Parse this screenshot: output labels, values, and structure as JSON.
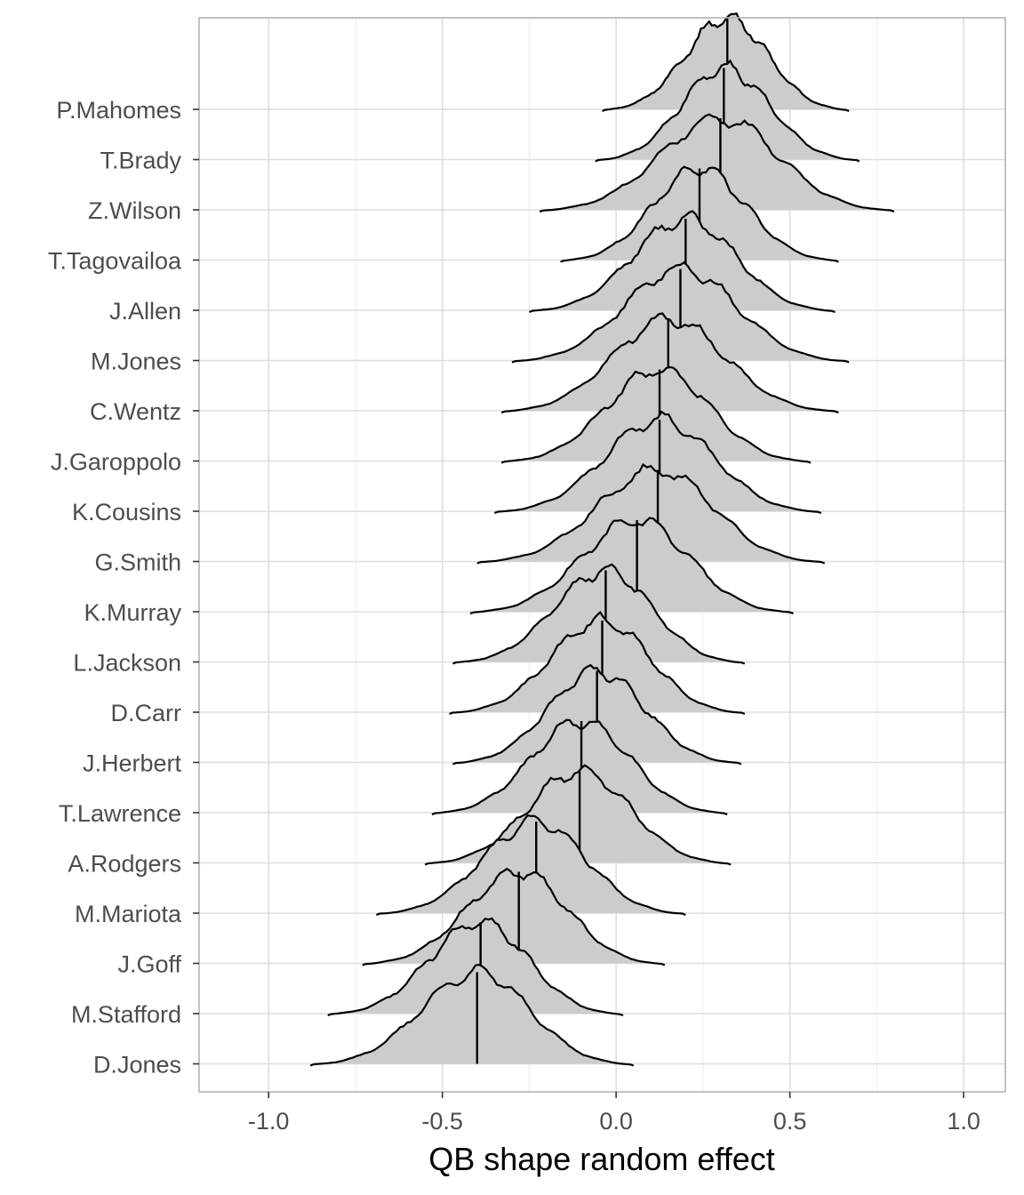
{
  "chart_data": {
    "type": "ridgeline",
    "title": "",
    "xlabel": "QB shape random effect",
    "ylabel": "",
    "xlim": [
      -1.2,
      1.12
    ],
    "x_ticks": [
      -1.0,
      -0.5,
      0.0,
      0.5,
      1.0
    ],
    "x_tick_labels": [
      "-1.0",
      "-0.5",
      "0.0",
      "0.5",
      "1.0"
    ],
    "grid": true,
    "fill_color": "#cccccc",
    "line_color": "#000000",
    "series": [
      {
        "name": "P.Mahomes",
        "min": -0.04,
        "max": 0.67,
        "median": 0.32
      },
      {
        "name": "T.Brady",
        "min": -0.06,
        "max": 0.7,
        "median": 0.31
      },
      {
        "name": "Z.Wilson",
        "min": -0.22,
        "max": 0.8,
        "median": 0.3
      },
      {
        "name": "T.Tagovailoa",
        "min": -0.16,
        "max": 0.64,
        "median": 0.24
      },
      {
        "name": "J.Allen",
        "min": -0.25,
        "max": 0.63,
        "median": 0.2
      },
      {
        "name": "M.Jones",
        "min": -0.3,
        "max": 0.67,
        "median": 0.185
      },
      {
        "name": "C.Wentz",
        "min": -0.33,
        "max": 0.64,
        "median": 0.15
      },
      {
        "name": "J.Garoppolo",
        "min": -0.33,
        "max": 0.56,
        "median": 0.125
      },
      {
        "name": "K.Cousins",
        "min": -0.35,
        "max": 0.59,
        "median": 0.125
      },
      {
        "name": "G.Smith",
        "min": -0.4,
        "max": 0.6,
        "median": 0.12
      },
      {
        "name": "K.Murray",
        "min": -0.42,
        "max": 0.51,
        "median": 0.06
      },
      {
        "name": "L.Jackson",
        "min": -0.47,
        "max": 0.37,
        "median": -0.03
      },
      {
        "name": "D.Carr",
        "min": -0.48,
        "max": 0.37,
        "median": -0.04
      },
      {
        "name": "J.Herbert",
        "min": -0.47,
        "max": 0.36,
        "median": -0.055
      },
      {
        "name": "T.Lawrence",
        "min": -0.53,
        "max": 0.32,
        "median": -0.1
      },
      {
        "name": "A.Rodgers",
        "min": -0.55,
        "max": 0.33,
        "median": -0.105
      },
      {
        "name": "M.Mariota",
        "min": -0.69,
        "max": 0.2,
        "median": -0.23
      },
      {
        "name": "J.Goff",
        "min": -0.73,
        "max": 0.14,
        "median": -0.28
      },
      {
        "name": "M.Stafford",
        "min": -0.83,
        "max": 0.02,
        "median": -0.39
      },
      {
        "name": "D.Jones",
        "min": -0.88,
        "max": 0.05,
        "median": -0.4
      }
    ]
  }
}
